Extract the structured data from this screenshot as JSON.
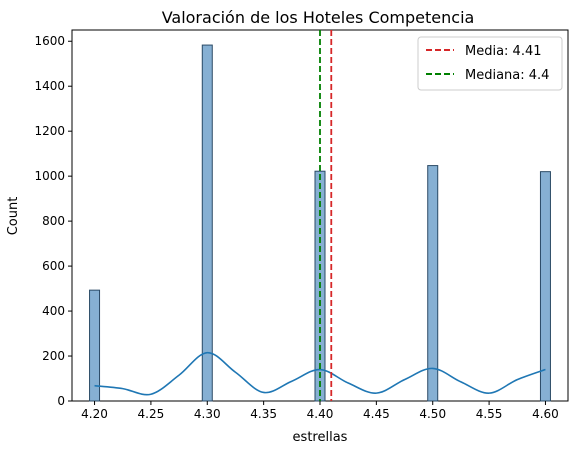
{
  "chart_data": {
    "type": "bar",
    "title": "Valoración de los Hoteles Competencia",
    "xlabel": "estrellas",
    "ylabel": "Count",
    "xlim": [
      4.18,
      4.62
    ],
    "ylim": [
      0,
      1650
    ],
    "x_ticks": [
      "4.20",
      "4.25",
      "4.30",
      "4.35",
      "4.40",
      "4.45",
      "4.50",
      "4.55",
      "4.60"
    ],
    "y_ticks": [
      "0",
      "200",
      "400",
      "600",
      "800",
      "1000",
      "1200",
      "1400",
      "1600"
    ],
    "bars": [
      {
        "x": 4.2,
        "value": 493
      },
      {
        "x": 4.3,
        "value": 1583
      },
      {
        "x": 4.4,
        "value": 1022
      },
      {
        "x": 4.5,
        "value": 1047
      },
      {
        "x": 4.6,
        "value": 1020
      }
    ],
    "kde": {
      "x": [
        4.2,
        4.225,
        4.25,
        4.275,
        4.3,
        4.325,
        4.35,
        4.375,
        4.4,
        4.425,
        4.45,
        4.475,
        4.5,
        4.525,
        4.55,
        4.575,
        4.6
      ],
      "y": [
        68,
        55,
        30,
        115,
        215,
        128,
        38,
        88,
        140,
        80,
        35,
        95,
        145,
        85,
        35,
        95,
        140
      ]
    },
    "reference_lines": [
      {
        "label": "Media: 4.41",
        "x": 4.41,
        "color": "#d62728"
      },
      {
        "label": "Mediana: 4.4",
        "x": 4.4,
        "color": "#008000"
      }
    ],
    "colors": {
      "bar_fill": "#86b0d3",
      "bar_edge": "#2a4a66",
      "kde": "#1f77b4"
    },
    "legend_position": "top-right"
  }
}
